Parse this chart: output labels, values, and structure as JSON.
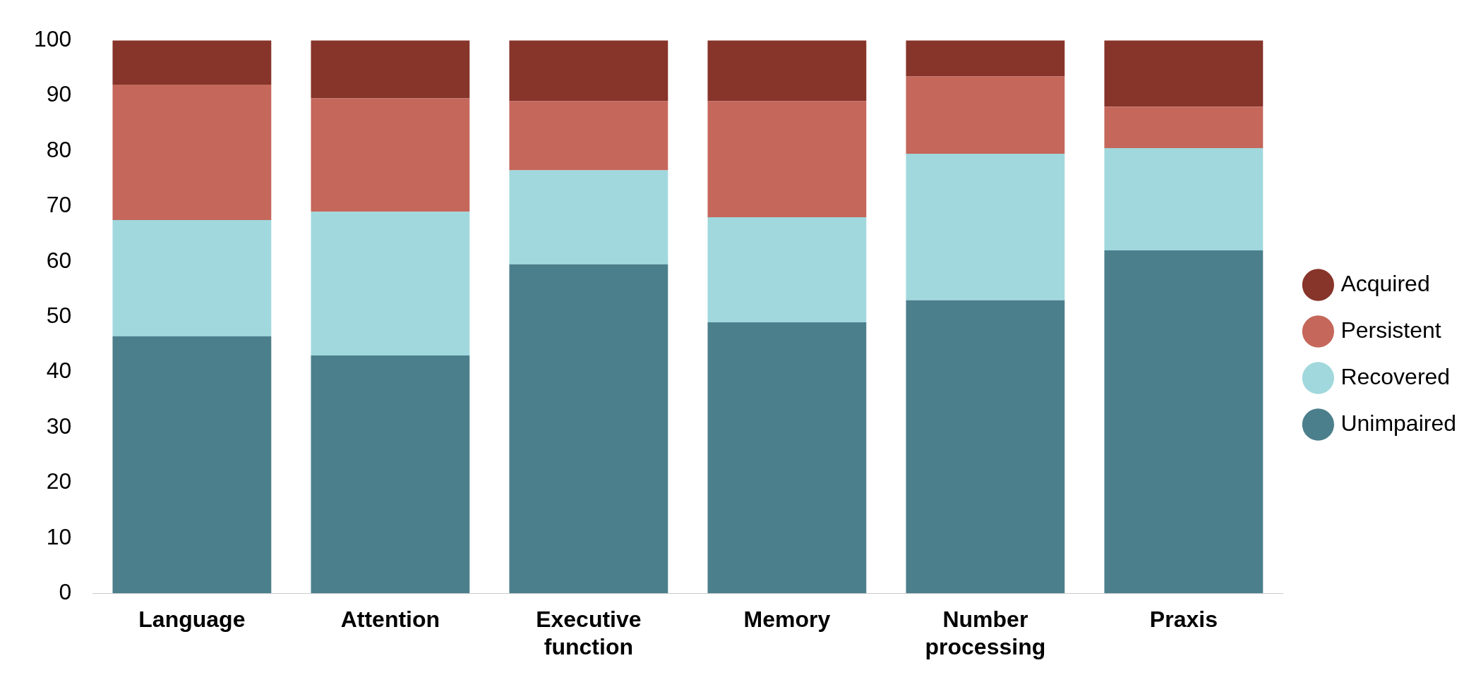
{
  "chart_data": {
    "type": "bar",
    "stacked": true,
    "categories": [
      "Language",
      "Attention",
      "Executive function",
      "Memory",
      "Number processing",
      "Praxis"
    ],
    "series": [
      {
        "name": "Unimpaired",
        "color": "#4c7f8c",
        "values": [
          46.5,
          43,
          59.5,
          49,
          53,
          62
        ]
      },
      {
        "name": "Recovered",
        "color": "#a0d8dd",
        "values": [
          21,
          26,
          17,
          19,
          26.5,
          18.5
        ]
      },
      {
        "name": "Persistent",
        "color": "#c5675b",
        "values": [
          24.5,
          20.5,
          12.5,
          21,
          14,
          7.5
        ]
      },
      {
        "name": "Acquired",
        "color": "#87342a",
        "values": [
          8,
          10.5,
          11,
          11,
          6.5,
          12
        ]
      }
    ],
    "ylim": [
      0,
      100
    ],
    "yticks": [
      0,
      10,
      20,
      30,
      40,
      50,
      60,
      70,
      80,
      90,
      100
    ],
    "grid": false,
    "legend": "right"
  }
}
